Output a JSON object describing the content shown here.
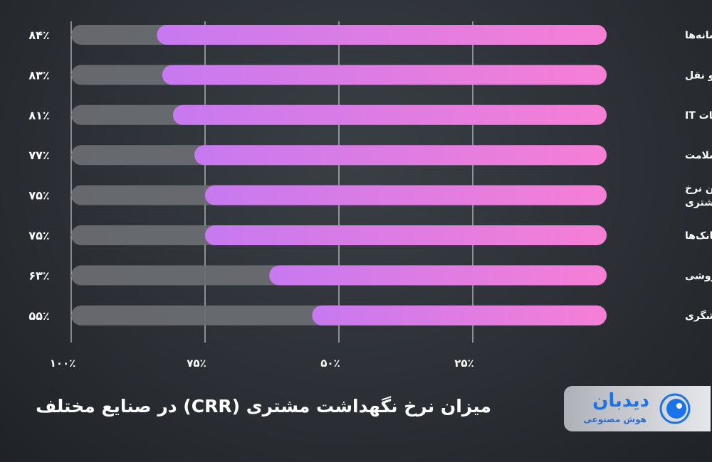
{
  "chart_data": {
    "type": "bar",
    "orientation": "horizontal",
    "title": "میزان نرخ نگهداشت مشتری (CRR) در صنایع مختلف",
    "categories": [
      "رسانه‌ها",
      "حمل و نقل",
      "خدمات IT",
      "صنعت سلامت",
      "میانگین نرخ حفظ مشتری",
      "بانک‌ها",
      "خرده فروشی",
      "صنعت گردشگری"
    ],
    "category_lines": [
      [
        "رسانه‌ها"
      ],
      [
        "حمل و نقل"
      ],
      [
        "خدمات IT"
      ],
      [
        "صنعت سلامت"
      ],
      [
        "میانگین نرخ",
        "حفظ مشتری"
      ],
      [
        "بانک‌ها"
      ],
      [
        "خرده فروشی"
      ],
      [
        "صنعت گردشگری"
      ]
    ],
    "values": [
      84,
      83,
      81,
      77,
      75,
      75,
      63,
      55
    ],
    "value_labels": [
      "۸۴٪",
      "۸۳٪",
      "۸۱٪",
      "۷۷٪",
      "۷۵٪",
      "۷۵٪",
      "۶۳٪",
      "۵۵٪"
    ],
    "xlim": [
      0,
      100
    ],
    "x_axis_direction": "right-to-left",
    "x_ticks": [
      100,
      75,
      50,
      25
    ],
    "x_tick_labels": [
      "۱۰۰٪",
      "۷۵٪",
      "۵۰٪",
      "۲۵٪"
    ],
    "grid": true,
    "colors": {
      "bar_track": "#6b6e73",
      "bar_fill_start": "#c779f0",
      "bar_fill_end": "#f67fd6",
      "grid_line": "#ffffff"
    }
  },
  "logo": {
    "name": "دیدبان",
    "subtitle": "هوش مصنوعی",
    "color": "#1a73e8"
  }
}
